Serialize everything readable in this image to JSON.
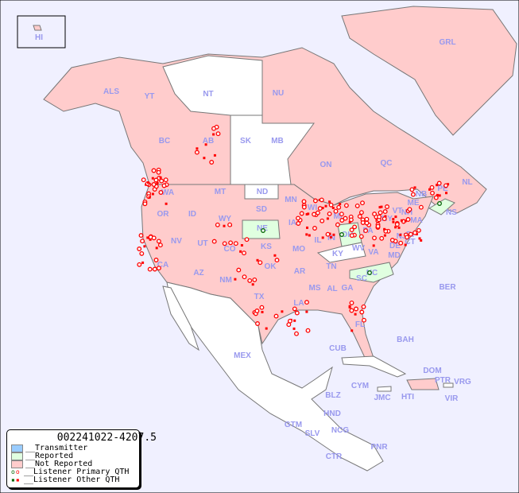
{
  "title": "002241022-4207.5",
  "colors": {
    "ocean": "#f0f0ff",
    "not_reported": "#ffcccc",
    "reported": "#e0ffe0",
    "transmitter": "#99ccff",
    "unlisted": "#ffffff",
    "label": "#9999ee",
    "primary_qth": "#ff0000",
    "other_qth": "#ff0000",
    "reported_qth": "#006600"
  },
  "legend": [
    {
      "label": "__Transmitter",
      "swatch": "#99ccff"
    },
    {
      "label": "__Reported",
      "swatch": "#e0ffe0"
    },
    {
      "label": "__Not Reported",
      "swatch": "#ffcccc"
    },
    {
      "label": "__Listener Primary QTH",
      "marker": "circle"
    },
    {
      "label": "__Listener Other QTH",
      "marker": "square"
    }
  ],
  "regions": [
    "HI",
    "ALS",
    "YT",
    "NT",
    "NU",
    "GRL",
    "BC",
    "AB",
    "SK",
    "MB",
    "ON",
    "QC",
    "NL",
    "NB",
    "PE",
    "NS",
    "WA",
    "OR",
    "ID",
    "MT",
    "ND",
    "SD",
    "MN",
    "WI",
    "MI",
    "NY",
    "VT",
    "NH",
    "ME",
    "MA",
    "RI",
    "CT",
    "NJ",
    "PA",
    "OH",
    "IN",
    "IL",
    "IA",
    "NE",
    "WY",
    "NV",
    "CA",
    "UT",
    "CO",
    "KS",
    "MO",
    "KY",
    "WV",
    "VA",
    "DE",
    "MD",
    "NC",
    "TN",
    "AR",
    "OK",
    "TX",
    "NM",
    "AZ",
    "LA",
    "MS",
    "AL",
    "GA",
    "SC",
    "FL",
    "BER",
    "BAH",
    "CUB",
    "MEX",
    "DOM",
    "PTR",
    "VRG",
    "VIR",
    "CYM",
    "JMC",
    "HTI",
    "BLZ",
    "HND",
    "GTM",
    "SLV",
    "NCG",
    "CTR",
    "PNR"
  ],
  "reported_regions": [
    "NE",
    "OH",
    "NC",
    "NS"
  ]
}
